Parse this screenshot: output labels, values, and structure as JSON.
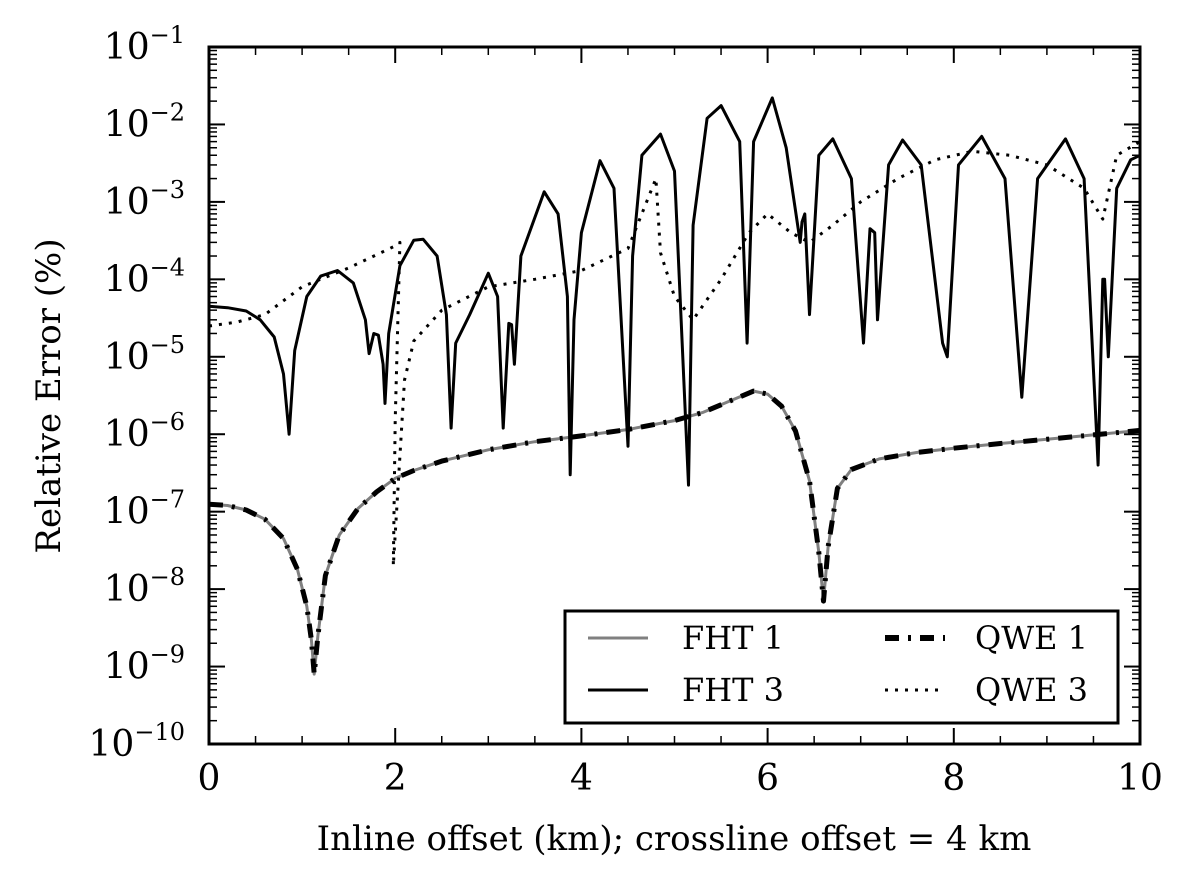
{
  "chart_data": {
    "type": "line",
    "title": "",
    "xlabel": "Inline offset (km); crossline offset = 4 km",
    "ylabel": "Relative Error (%)",
    "xlim": [
      0,
      10
    ],
    "ylim": [
      1e-10,
      0.1
    ],
    "yscale": "log",
    "grid": false,
    "legend_position": "lower-right",
    "x_ticks": [
      {
        "value": 0,
        "label": "0"
      },
      {
        "value": 2,
        "label": "2"
      },
      {
        "value": 4,
        "label": "4"
      },
      {
        "value": 6,
        "label": "6"
      },
      {
        "value": 8,
        "label": "8"
      },
      {
        "value": 10,
        "label": "10"
      }
    ],
    "y_ticks": [
      {
        "value": 1e-10,
        "base": "10",
        "exp": "−10"
      },
      {
        "value": 1e-09,
        "base": "10",
        "exp": "−9"
      },
      {
        "value": 1e-08,
        "base": "10",
        "exp": "−8"
      },
      {
        "value": 1e-07,
        "base": "10",
        "exp": "−7"
      },
      {
        "value": 1e-06,
        "base": "10",
        "exp": "−6"
      },
      {
        "value": 1e-05,
        "base": "10",
        "exp": "−5"
      },
      {
        "value": 0.0001,
        "base": "10",
        "exp": "−4"
      },
      {
        "value": 0.001,
        "base": "10",
        "exp": "−3"
      },
      {
        "value": 0.01,
        "base": "10",
        "exp": "−2"
      },
      {
        "value": 0.1,
        "base": "10",
        "exp": "−1"
      }
    ],
    "series": [
      {
        "name": "FHT 1",
        "color": "#808080",
        "style": "solid",
        "points": [
          [
            0,
            1.25e-07
          ],
          [
            0.2,
            1.2e-07
          ],
          [
            0.4,
            1.05e-07
          ],
          [
            0.6,
            8e-08
          ],
          [
            0.8,
            4.5e-08
          ],
          [
            0.95,
            1.8e-08
          ],
          [
            1.05,
            6e-09
          ],
          [
            1.1,
            2.2e-09
          ],
          [
            1.13,
            8e-10
          ],
          [
            1.17,
            2.5e-09
          ],
          [
            1.25,
            1.5e-08
          ],
          [
            1.4,
            5e-08
          ],
          [
            1.6,
            1.1e-07
          ],
          [
            1.8,
            1.8e-07
          ],
          [
            2.0,
            2.7e-07
          ],
          [
            2.2,
            3.4e-07
          ],
          [
            2.5,
            4.5e-07
          ],
          [
            3.0,
            6.3e-07
          ],
          [
            3.5,
            8e-07
          ],
          [
            4.0,
            9.5e-07
          ],
          [
            4.5,
            1.15e-06
          ],
          [
            5.0,
            1.5e-06
          ],
          [
            5.3,
            1.9e-06
          ],
          [
            5.6,
            2.7e-06
          ],
          [
            5.85,
            3.6e-06
          ],
          [
            6.0,
            3.3e-06
          ],
          [
            6.15,
            2.3e-06
          ],
          [
            6.3,
            1.1e-06
          ],
          [
            6.45,
            2.5e-07
          ],
          [
            6.55,
            3e-08
          ],
          [
            6.6,
            7e-09
          ],
          [
            6.65,
            3.5e-08
          ],
          [
            6.75,
            2e-07
          ],
          [
            6.9,
            3.5e-07
          ],
          [
            7.2,
            4.8e-07
          ],
          [
            7.6,
            5.8e-07
          ],
          [
            8.0,
            6.6e-07
          ],
          [
            8.5,
            7.6e-07
          ],
          [
            9.0,
            8.6e-07
          ],
          [
            9.5,
            9.8e-07
          ],
          [
            10.0,
            1.12e-06
          ]
        ]
      },
      {
        "name": "QWE 1",
        "color": "#000000",
        "style": "dashed",
        "points": [
          [
            0,
            1.25e-07
          ],
          [
            0.2,
            1.2e-07
          ],
          [
            0.4,
            1.05e-07
          ],
          [
            0.6,
            8e-08
          ],
          [
            0.8,
            4.5e-08
          ],
          [
            0.95,
            1.8e-08
          ],
          [
            1.05,
            6e-09
          ],
          [
            1.1,
            2.2e-09
          ],
          [
            1.13,
            8e-10
          ],
          [
            1.17,
            2.5e-09
          ],
          [
            1.25,
            1.5e-08
          ],
          [
            1.4,
            5e-08
          ],
          [
            1.6,
            1.1e-07
          ],
          [
            1.8,
            1.8e-07
          ],
          [
            2.0,
            2.7e-07
          ],
          [
            2.2,
            3.4e-07
          ],
          [
            2.5,
            4.5e-07
          ],
          [
            3.0,
            6.3e-07
          ],
          [
            3.5,
            8e-07
          ],
          [
            4.0,
            9.5e-07
          ],
          [
            4.5,
            1.15e-06
          ],
          [
            5.0,
            1.5e-06
          ],
          [
            5.3,
            1.9e-06
          ],
          [
            5.6,
            2.7e-06
          ],
          [
            5.85,
            3.6e-06
          ],
          [
            6.0,
            3.3e-06
          ],
          [
            6.15,
            2.3e-06
          ],
          [
            6.3,
            1.1e-06
          ],
          [
            6.45,
            2.5e-07
          ],
          [
            6.55,
            3e-08
          ],
          [
            6.6,
            7e-09
          ],
          [
            6.65,
            3.5e-08
          ],
          [
            6.75,
            2e-07
          ],
          [
            6.9,
            3.5e-07
          ],
          [
            7.2,
            4.8e-07
          ],
          [
            7.6,
            5.8e-07
          ],
          [
            8.0,
            6.6e-07
          ],
          [
            8.5,
            7.6e-07
          ],
          [
            9.0,
            8.6e-07
          ],
          [
            9.5,
            9.8e-07
          ],
          [
            10.0,
            1.12e-06
          ]
        ]
      },
      {
        "name": "FHT 3",
        "color": "#000000",
        "style": "solid",
        "points": [
          [
            0,
            4.5e-05
          ],
          [
            0.2,
            4.3e-05
          ],
          [
            0.4,
            3.9e-05
          ],
          [
            0.55,
            3e-05
          ],
          [
            0.7,
            1.8e-05
          ],
          [
            0.8,
            6e-06
          ],
          [
            0.86,
            1e-06
          ],
          [
            0.92,
            1.2e-05
          ],
          [
            1.05,
            6e-05
          ],
          [
            1.2,
            0.00011
          ],
          [
            1.38,
            0.00013
          ],
          [
            1.55,
            9e-05
          ],
          [
            1.68,
            3e-05
          ],
          [
            1.72,
            1.1e-05
          ],
          [
            1.77,
            2e-05
          ],
          [
            1.82,
            1.9e-05
          ],
          [
            1.87,
            8e-06
          ],
          [
            1.89,
            2.5e-06
          ],
          [
            1.93,
            2e-05
          ],
          [
            2.05,
            0.00015
          ],
          [
            2.2,
            0.00032
          ],
          [
            2.3,
            0.00033
          ],
          [
            2.45,
            0.0002
          ],
          [
            2.55,
            3.5e-05
          ],
          [
            2.6,
            1.2e-06
          ],
          [
            2.65,
            1.5e-05
          ],
          [
            2.8,
            3.5e-05
          ],
          [
            3.0,
            0.00012
          ],
          [
            3.1,
            6e-05
          ],
          [
            3.16,
            1.2e-06
          ],
          [
            3.22,
            2.7e-05
          ],
          [
            3.25,
            2.6e-05
          ],
          [
            3.28,
            8e-06
          ],
          [
            3.35,
            0.0002
          ],
          [
            3.6,
            0.00135
          ],
          [
            3.75,
            0.0007
          ],
          [
            3.85,
            6e-05
          ],
          [
            3.88,
            3e-07
          ],
          [
            3.92,
            3e-05
          ],
          [
            4.0,
            0.0004
          ],
          [
            4.2,
            0.0034
          ],
          [
            4.35,
            0.0015
          ],
          [
            4.5,
            7e-07
          ],
          [
            4.55,
            0.0002
          ],
          [
            4.65,
            0.004
          ],
          [
            4.85,
            0.0075
          ],
          [
            5.0,
            0.0025
          ],
          [
            5.15,
            2.2e-07
          ],
          [
            5.2,
            0.0005
          ],
          [
            5.35,
            0.012
          ],
          [
            5.5,
            0.0175
          ],
          [
            5.7,
            0.006
          ],
          [
            5.78,
            1.5e-05
          ],
          [
            5.85,
            0.006
          ],
          [
            6.05,
            0.022
          ],
          [
            6.2,
            0.005
          ],
          [
            6.35,
            0.0003
          ],
          [
            6.37,
            0.00055
          ],
          [
            6.4,
            0.0007
          ],
          [
            6.45,
            3.5e-05
          ],
          [
            6.55,
            0.004
          ],
          [
            6.7,
            0.0065
          ],
          [
            6.9,
            0.002
          ],
          [
            7.03,
            1.5e-05
          ],
          [
            7.1,
            0.00045
          ],
          [
            7.15,
            0.0004
          ],
          [
            7.18,
            3e-05
          ],
          [
            7.3,
            0.003
          ],
          [
            7.45,
            0.0063
          ],
          [
            7.65,
            0.003
          ],
          [
            7.88,
            1.5e-05
          ],
          [
            7.93,
            1e-05
          ],
          [
            8.05,
            0.003
          ],
          [
            8.3,
            0.007
          ],
          [
            8.55,
            0.002
          ],
          [
            8.73,
            3e-06
          ],
          [
            8.9,
            0.002
          ],
          [
            9.2,
            0.0065
          ],
          [
            9.4,
            0.002
          ],
          [
            9.55,
            4e-07
          ],
          [
            9.6,
            0.0001
          ],
          [
            9.62,
            0.0001
          ],
          [
            9.66,
            1e-05
          ],
          [
            9.75,
            0.0015
          ],
          [
            9.9,
            0.0035
          ],
          [
            10.0,
            0.004
          ]
        ]
      },
      {
        "name": "QWE 3",
        "color": "#000000",
        "style": "dotted",
        "points": [
          [
            0,
            2.5e-05
          ],
          [
            0.3,
            2.8e-05
          ],
          [
            0.6,
            3.5e-05
          ],
          [
            1.0,
            8e-05
          ],
          [
            1.5,
            0.00014
          ],
          [
            2.0,
            0.00027
          ],
          [
            2.05,
            0.0003
          ],
          [
            2.0,
            1.5e-06
          ],
          [
            1.98,
            2e-08
          ],
          [
            2.1,
            5e-06
          ],
          [
            2.2,
            1.6e-05
          ],
          [
            2.5,
            4e-05
          ],
          [
            3.0,
            8e-05
          ],
          [
            3.5,
            0.0001
          ],
          [
            4.0,
            0.00013
          ],
          [
            4.5,
            0.00025
          ],
          [
            4.8,
            0.002
          ],
          [
            4.85,
            0.00022
          ],
          [
            5.0,
            6e-05
          ],
          [
            5.2,
            3e-05
          ],
          [
            5.5,
            0.0001
          ],
          [
            5.8,
            0.0004
          ],
          [
            6.0,
            0.0007
          ],
          [
            6.25,
            0.0004
          ],
          [
            6.45,
            0.0003
          ],
          [
            6.7,
            0.0005
          ],
          [
            7.0,
            0.001
          ],
          [
            7.4,
            0.002
          ],
          [
            7.8,
            0.0035
          ],
          [
            8.2,
            0.0045
          ],
          [
            8.6,
            0.004
          ],
          [
            9.0,
            0.003
          ],
          [
            9.4,
            0.0015
          ],
          [
            9.6,
            0.0006
          ],
          [
            9.75,
            0.004
          ],
          [
            10.0,
            0.006
          ]
        ]
      }
    ]
  }
}
